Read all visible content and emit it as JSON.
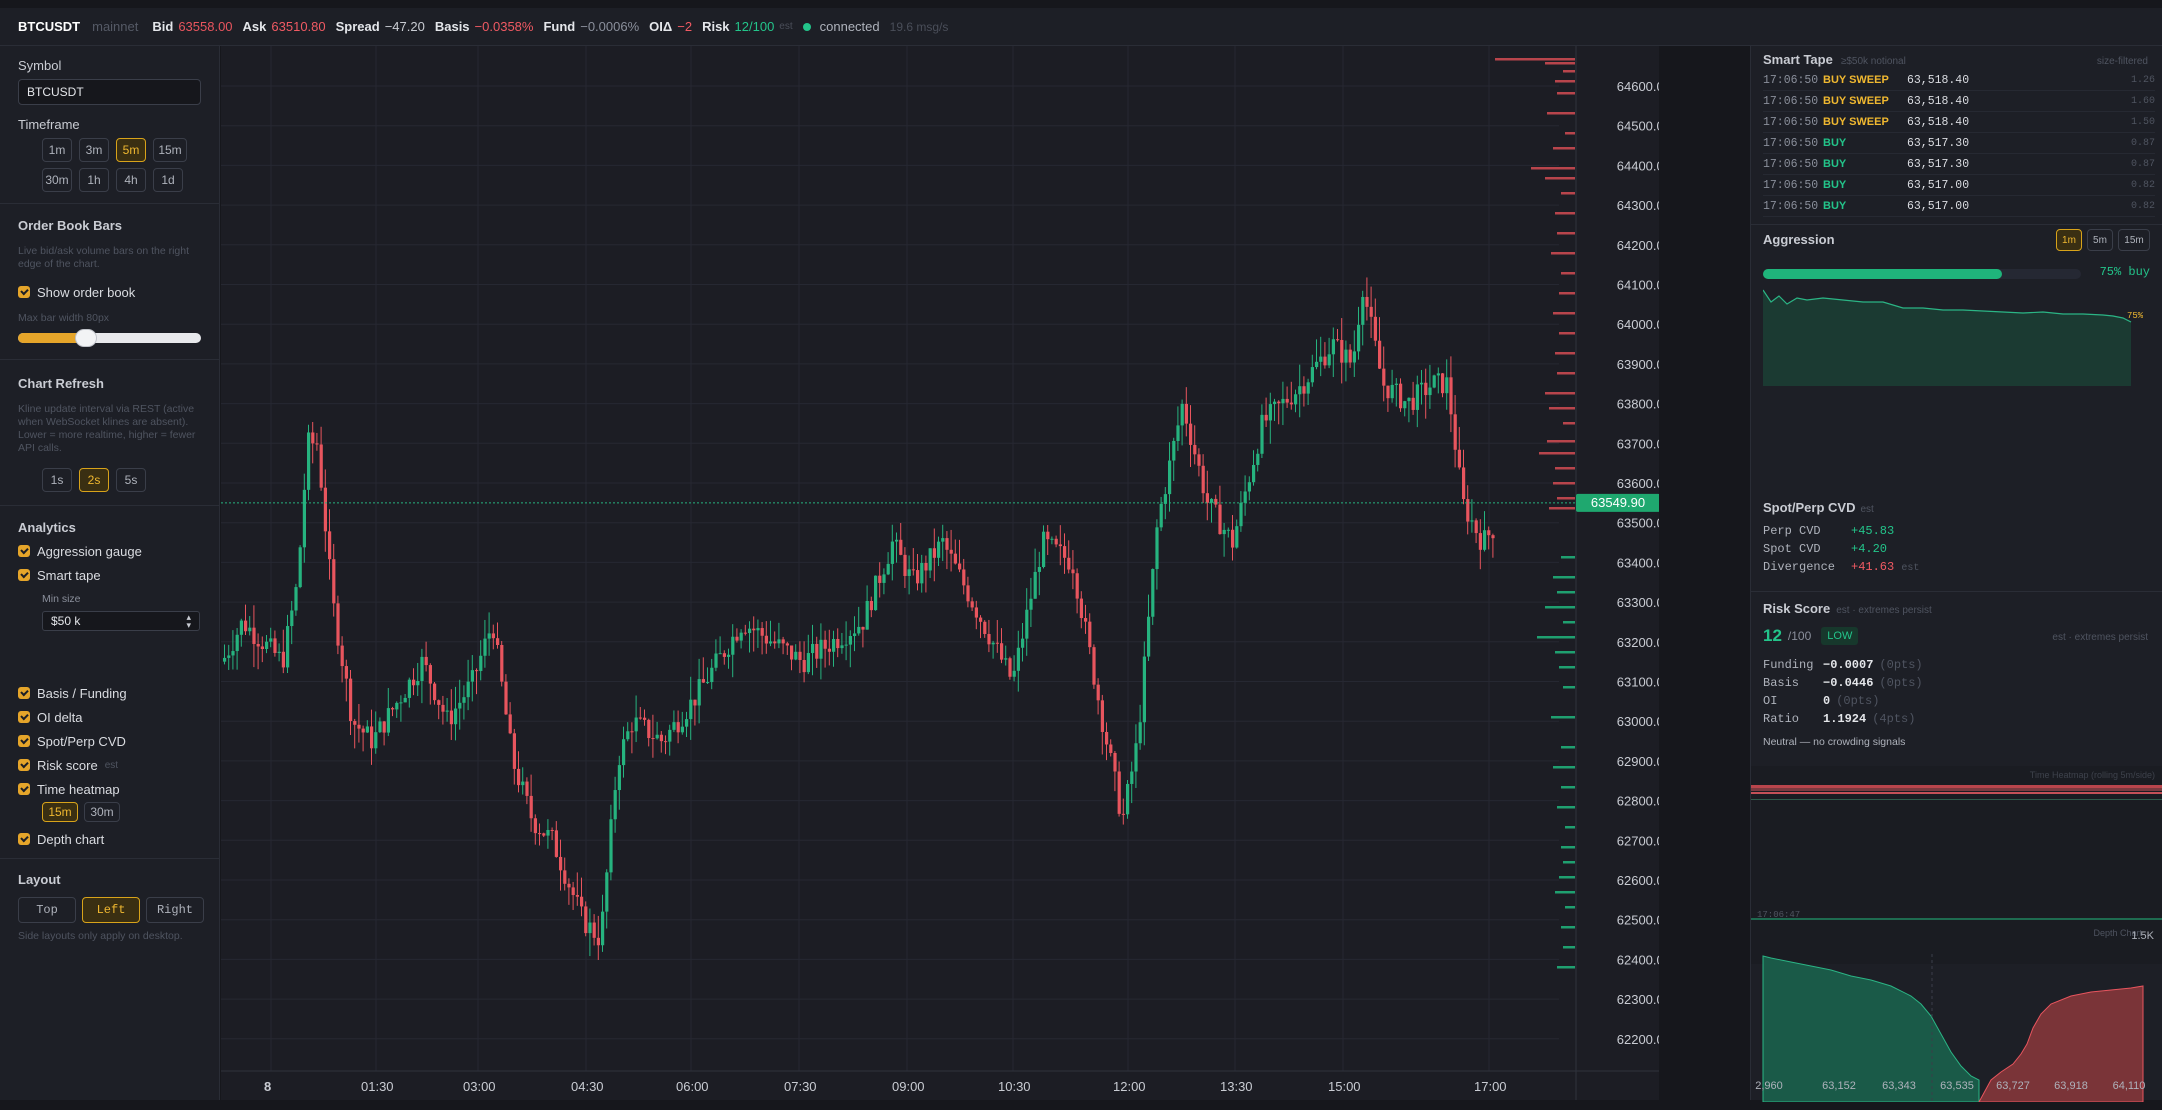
{
  "topbar": {
    "symbol": "BTCUSDT",
    "network": "mainnet",
    "bid_label": "Bid",
    "bid": "63558.00",
    "ask_label": "Ask",
    "ask": "63510.80",
    "spread_label": "Spread",
    "spread": "−47.20",
    "basis_label": "Basis",
    "basis": "−0.0358%",
    "fund_label": "Fund",
    "fund": "−0.0006%",
    "oi_label": "OIΔ",
    "oi": "−2",
    "risk_label": "Risk",
    "risk": "12/100",
    "risk_tag": "est",
    "status": "connected",
    "rate": "19.6 msg/s"
  },
  "sidebar": {
    "symbol_label": "Symbol",
    "symbol_value": "BTCUSDT",
    "timeframe_label": "Timeframe",
    "timeframes": [
      "1m",
      "3m",
      "5m",
      "15m",
      "30m",
      "1h",
      "4h",
      "1d"
    ],
    "timeframe_active": "5m",
    "orderbook_title": "Order Book Bars",
    "orderbook_hint": "Live bid/ask volume bars on the right edge of the chart.",
    "show_orderbook": "Show order book",
    "max_bar_width": "Max bar width 80px",
    "slider_value": 0.37,
    "refresh_title": "Chart Refresh",
    "refresh_hint": "Kline update interval via REST (active when WebSocket klines are absent). Lower = more realtime, higher = fewer API calls.",
    "refresh_options": [
      "1s",
      "2s",
      "5s"
    ],
    "refresh_active": "2s",
    "analytics_title": "Analytics",
    "aggression_gauge": "Aggression gauge",
    "smart_tape": "Smart tape",
    "min_size_label": "Min size",
    "min_size_value": "$50 k",
    "basis_funding": "Basis / Funding",
    "oi_delta": "OI delta",
    "spot_perp_cvd": "Spot/Perp CVD",
    "risk_score": "Risk score",
    "risk_score_tag": "est",
    "time_heatmap": "Time heatmap",
    "heatmap_options": [
      "15m",
      "30m"
    ],
    "heatmap_active": "15m",
    "depth_chart": "Depth chart",
    "layout_title": "Layout",
    "layout_options": [
      "Top",
      "Left",
      "Right"
    ],
    "layout_active": "Left",
    "layout_hint": "Side layouts only apply on desktop."
  },
  "chart": {
    "price_labels": [
      "64600.00",
      "64500.00",
      "64400.00",
      "64300.00",
      "64200.00",
      "64100.00",
      "64000.00",
      "63900.00",
      "63800.00",
      "63700.00",
      "63600.00",
      "63500.00",
      "63400.00",
      "63300.00",
      "63200.00",
      "63100.00",
      "63000.00",
      "62900.00",
      "62800.00",
      "62700.00",
      "62600.00",
      "62500.00",
      "62400.00",
      "62300.00",
      "62200.00"
    ],
    "current_price": "63549.90",
    "time_labels": [
      "8",
      "01:30",
      "03:00",
      "04:30",
      "06:00",
      "07:30",
      "09:00",
      "10:30",
      "12:00",
      "13:30",
      "15:00",
      "17:00"
    ],
    "colors": {
      "up": "#26b37f",
      "down": "#e8555e",
      "grid": "#262832"
    }
  },
  "smart_tape": {
    "title": "Smart Tape",
    "sub": "≥$50k notional",
    "right_tag": "size-filtered",
    "rows": [
      {
        "time": "17:06:50",
        "side": "BUY SWEEP",
        "price": "63,518.40",
        "size": "1.26",
        "sweep": true
      },
      {
        "time": "17:06:50",
        "side": "BUY SWEEP",
        "price": "63,518.40",
        "size": "1.60",
        "sweep": true
      },
      {
        "time": "17:06:50",
        "side": "BUY SWEEP",
        "price": "63,518.40",
        "size": "1.50",
        "sweep": true
      },
      {
        "time": "17:06:50",
        "side": "BUY",
        "price": "63,517.30",
        "size": "0.87",
        "sweep": false
      },
      {
        "time": "17:06:50",
        "side": "BUY",
        "price": "63,517.30",
        "size": "0.87",
        "sweep": false
      },
      {
        "time": "17:06:50",
        "side": "BUY",
        "price": "63,517.00",
        "size": "0.82",
        "sweep": false
      },
      {
        "time": "17:06:50",
        "side": "BUY",
        "price": "63,517.00",
        "size": "0.82",
        "sweep": false
      }
    ]
  },
  "aggression": {
    "title": "Aggression",
    "options": [
      "1m",
      "5m",
      "15m"
    ],
    "active": "1m",
    "buy_fraction": 0.75,
    "label": "75% buy",
    "end_label": "75%"
  },
  "cvd": {
    "title": "Spot/Perp CVD",
    "tag": "est",
    "perp_label": "Perp CVD",
    "perp": "+45.83",
    "spot_label": "Spot CVD",
    "spot": "+4.20",
    "div_label": "Divergence",
    "div": "+41.63",
    "div_tag": "est"
  },
  "risk": {
    "title": "Risk Score",
    "tag": "est · extremes persist",
    "score": "12",
    "of": "/100",
    "level": "LOW",
    "right_tag": "est · extremes persist",
    "rows": [
      {
        "k": "Funding",
        "v": "−0.0007",
        "p": "(0pts)"
      },
      {
        "k": "Basis",
        "v": "−0.0446",
        "p": "(0pts)"
      },
      {
        "k": "OI",
        "v": "0",
        "p": "(0pts)"
      },
      {
        "k": "Ratio",
        "v": "1.1924",
        "p": "(4pts)"
      }
    ],
    "note": "Neutral — no crowding signals"
  },
  "heatmap": {
    "title": "Time Heatmap (rolling 5m/side)",
    "time": "17:06:47"
  },
  "depth": {
    "title": "Depth Chart",
    "max": "1.5K",
    "x_labels": [
      "2,960",
      "63,152",
      "63,343",
      "63,535",
      "63,727",
      "63,918",
      "64,110"
    ]
  }
}
